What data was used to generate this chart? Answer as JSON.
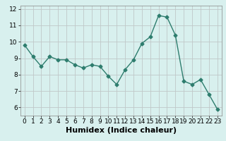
{
  "x": [
    0,
    1,
    2,
    3,
    4,
    5,
    6,
    7,
    8,
    9,
    10,
    11,
    12,
    13,
    14,
    15,
    16,
    17,
    18,
    19,
    20,
    21,
    22,
    23
  ],
  "y": [
    9.8,
    9.1,
    8.5,
    9.1,
    8.9,
    8.9,
    8.6,
    8.4,
    8.6,
    8.5,
    7.9,
    7.4,
    8.3,
    8.9,
    9.9,
    10.3,
    11.6,
    11.5,
    10.4,
    7.6,
    7.4,
    7.7,
    6.8,
    5.9
  ],
  "xlabel": "Humidex (Indice chaleur)",
  "xlim": [
    -0.5,
    23.5
  ],
  "ylim": [
    5.5,
    12.2
  ],
  "yticks": [
    6,
    7,
    8,
    9,
    10,
    11,
    12
  ],
  "xticks": [
    0,
    1,
    2,
    3,
    4,
    5,
    6,
    7,
    8,
    9,
    10,
    11,
    12,
    13,
    14,
    15,
    16,
    17,
    18,
    19,
    20,
    21,
    22,
    23
  ],
  "line_color": "#2e7d6e",
  "marker": "D",
  "marker_size": 2.5,
  "bg_color": "#d8f0ee",
  "grid_color": "#c0c8c8",
  "tick_label_fontsize": 6.5,
  "xlabel_fontsize": 8.0
}
